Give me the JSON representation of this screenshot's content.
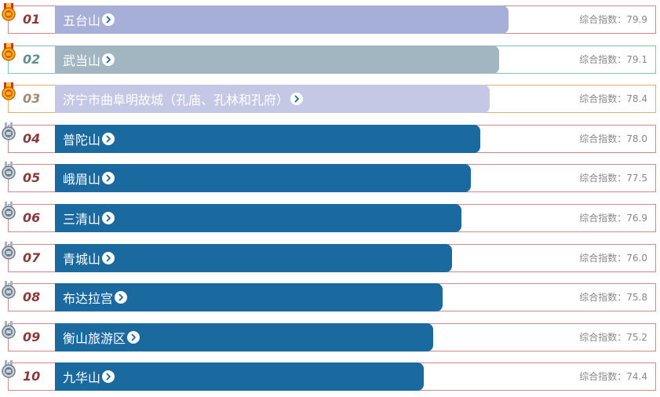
{
  "score_label": "综合指数：",
  "colors": {
    "bar_rank1": "#a7aed8",
    "bar_rank2": "#a2b6c1",
    "bar_rank3": "#c5c8e4",
    "bar_other": "#1a6aa0",
    "chevron": "#1a6aa0"
  },
  "items": [
    {
      "rank": "01",
      "name": "五台山",
      "score": "79.9",
      "medal": "gold-medal-icon"
    },
    {
      "rank": "02",
      "name": "武当山",
      "score": "79.1",
      "medal": "gold-medal-icon"
    },
    {
      "rank": "03",
      "name": "济宁市曲阜明故城（孔庙、孔林和孔府）",
      "score": "78.4",
      "medal": "gold-medal-icon"
    },
    {
      "rank": "04",
      "name": "普陀山",
      "score": "78.0",
      "medal": "silver-medal-icon"
    },
    {
      "rank": "05",
      "name": "峨眉山",
      "score": "77.5",
      "medal": "silver-medal-icon"
    },
    {
      "rank": "06",
      "name": "三清山",
      "score": "76.9",
      "medal": "silver-medal-icon"
    },
    {
      "rank": "07",
      "name": "青城山",
      "score": "76.0",
      "medal": "silver-medal-icon"
    },
    {
      "rank": "08",
      "name": "布达拉宫",
      "score": "75.8",
      "medal": "silver-medal-icon"
    },
    {
      "rank": "09",
      "name": "衡山旅游区",
      "score": "75.2",
      "medal": "silver-medal-icon"
    },
    {
      "rank": "10",
      "name": "九华山",
      "score": "74.4",
      "medal": "silver-medal-icon"
    }
  ]
}
